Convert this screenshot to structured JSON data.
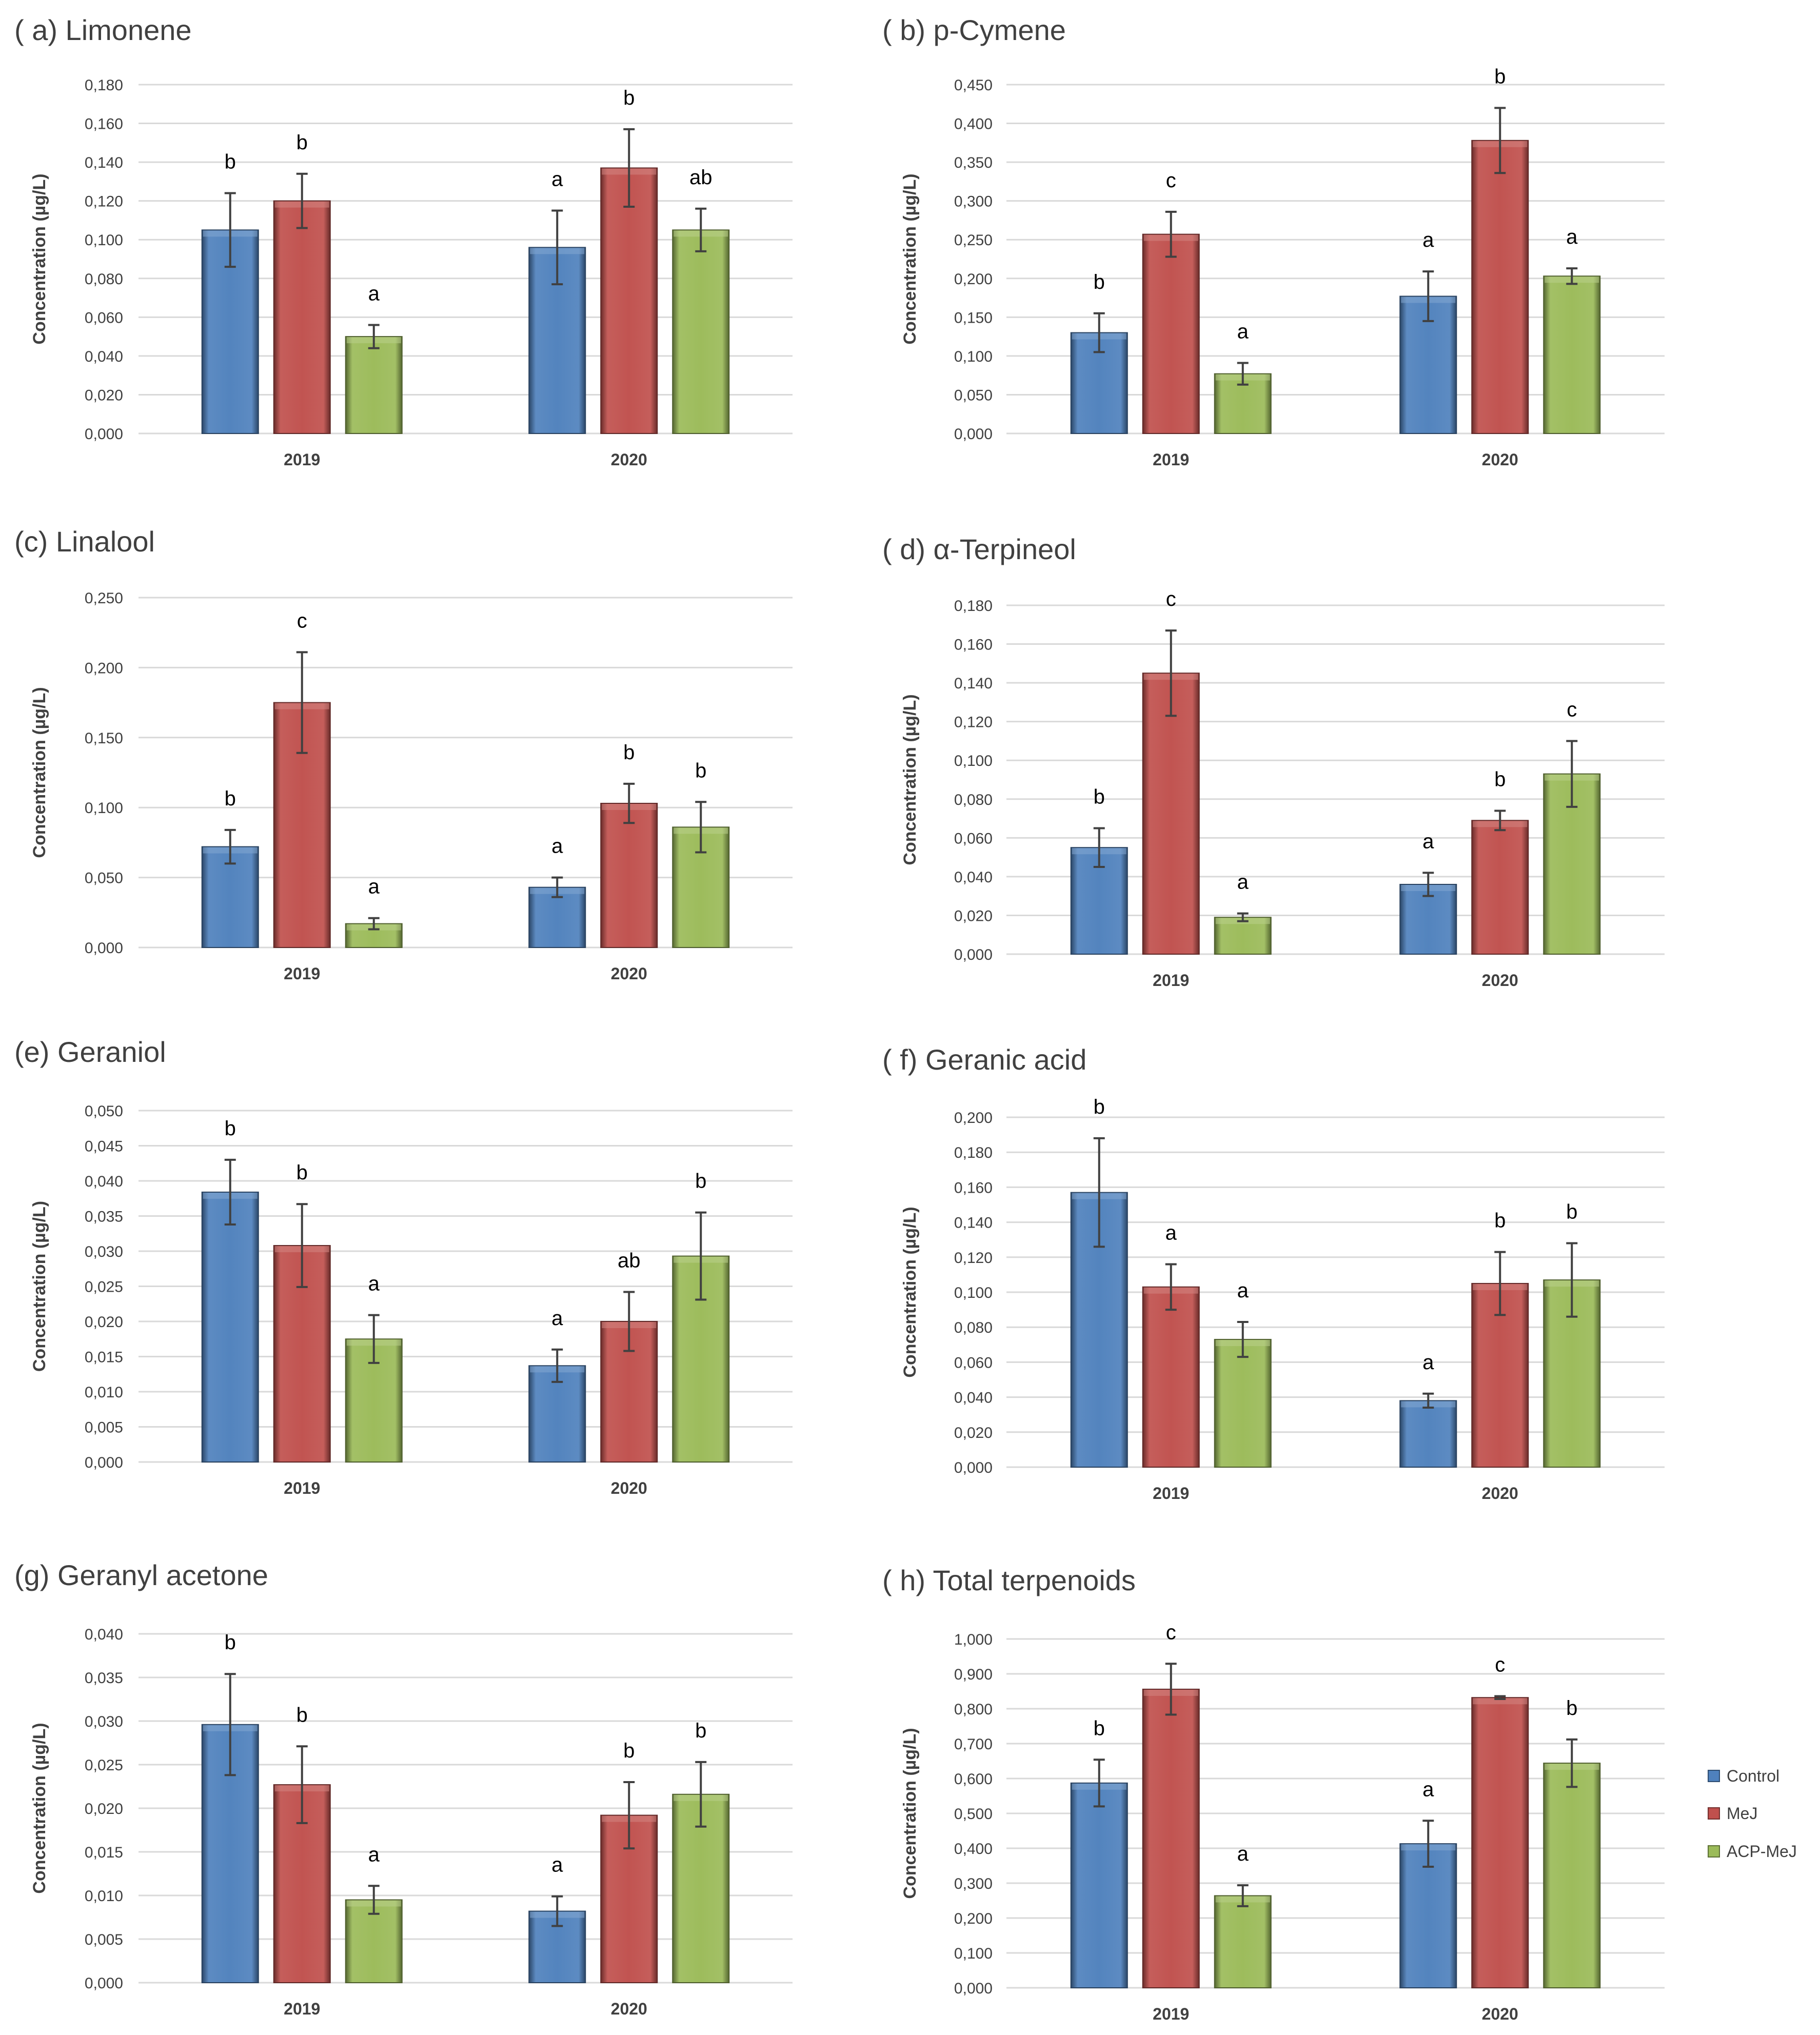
{
  "legend": [
    {
      "name": "Control",
      "color": "#4f81bd"
    },
    {
      "name": "MeJ",
      "color": "#c0504d"
    },
    {
      "name": "ACP-MeJ",
      "color": "#9bbb59"
    }
  ],
  "chart_data": [
    {
      "type": "bar",
      "title": "( a) Limonene",
      "ylabel": "Concentration (µg/L)",
      "categories": [
        "2019",
        "2020"
      ],
      "ylim": [
        0,
        0.18
      ],
      "yticks": [
        "0,000",
        "0,020",
        "0,040",
        "0,060",
        "0,080",
        "0,100",
        "0,120",
        "0,140",
        "0,160",
        "0,180"
      ],
      "series": [
        {
          "name": "Control",
          "values": [
            0.105,
            0.096
          ],
          "errors": [
            0.019,
            0.019
          ],
          "letters": [
            "b",
            "a"
          ]
        },
        {
          "name": "MeJ",
          "values": [
            0.12,
            0.137
          ],
          "errors": [
            0.014,
            0.02
          ],
          "letters": [
            "b",
            "b"
          ]
        },
        {
          "name": "ACP-MeJ",
          "values": [
            0.05,
            0.105
          ],
          "errors": [
            0.006,
            0.011
          ],
          "letters": [
            "a",
            "ab"
          ]
        }
      ]
    },
    {
      "type": "bar",
      "title": "( b) p-Cymene",
      "ylabel": "Concentration (µg/L)",
      "categories": [
        "2019",
        "2020"
      ],
      "ylim": [
        0,
        0.45
      ],
      "yticks": [
        "0,000",
        "0,050",
        "0,100",
        "0,150",
        "0,200",
        "0,250",
        "0,300",
        "0,350",
        "0,400",
        "0,450"
      ],
      "series": [
        {
          "name": "Control",
          "values": [
            0.13,
            0.177
          ],
          "errors": [
            0.025,
            0.032
          ],
          "letters": [
            "b",
            "a"
          ]
        },
        {
          "name": "MeJ",
          "values": [
            0.257,
            0.378
          ],
          "errors": [
            0.029,
            0.042
          ],
          "letters": [
            "c",
            "b"
          ]
        },
        {
          "name": "ACP-MeJ",
          "values": [
            0.077,
            0.203
          ],
          "errors": [
            0.014,
            0.01
          ],
          "letters": [
            "a",
            "a"
          ]
        }
      ]
    },
    {
      "type": "bar",
      "title": "(c) Linalool",
      "ylabel": "Concentration (µg/L)",
      "categories": [
        "2019",
        "2020"
      ],
      "ylim": [
        0,
        0.25
      ],
      "yticks": [
        "0,000",
        "0,050",
        "0,100",
        "0,150",
        "0,200",
        "0,250"
      ],
      "series": [
        {
          "name": "Control",
          "values": [
            0.072,
            0.043
          ],
          "errors": [
            0.012,
            0.007
          ],
          "letters": [
            "b",
            "a"
          ]
        },
        {
          "name": "MeJ",
          "values": [
            0.175,
            0.103
          ],
          "errors": [
            0.036,
            0.014
          ],
          "letters": [
            "c",
            "b"
          ]
        },
        {
          "name": "ACP-MeJ",
          "values": [
            0.017,
            0.086
          ],
          "errors": [
            0.004,
            0.018
          ],
          "letters": [
            "a",
            "b"
          ]
        }
      ]
    },
    {
      "type": "bar",
      "title": "( d) α-Terpineol",
      "ylabel": "Concentration (µg/L)",
      "categories": [
        "2019",
        "2020"
      ],
      "ylim": [
        0,
        0.18
      ],
      "yticks": [
        "0,000",
        "0,020",
        "0,040",
        "0,060",
        "0,080",
        "0,100",
        "0,120",
        "0,140",
        "0,160",
        "0,180"
      ],
      "series": [
        {
          "name": "Control",
          "values": [
            0.055,
            0.036
          ],
          "errors": [
            0.01,
            0.006
          ],
          "letters": [
            "b",
            "a"
          ]
        },
        {
          "name": "MeJ",
          "values": [
            0.145,
            0.069
          ],
          "errors": [
            0.022,
            0.005
          ],
          "letters": [
            "c",
            "b"
          ]
        },
        {
          "name": "ACP-MeJ",
          "values": [
            0.019,
            0.093
          ],
          "errors": [
            0.002,
            0.017
          ],
          "letters": [
            "a",
            "c"
          ]
        }
      ]
    },
    {
      "type": "bar",
      "title": "(e) Geraniol",
      "ylabel": "Concentration (µg/L)",
      "categories": [
        "2019",
        "2020"
      ],
      "ylim": [
        0,
        0.05
      ],
      "yticks": [
        "0,000",
        "0,005",
        "0,010",
        "0,015",
        "0,020",
        "0,025",
        "0,030",
        "0,035",
        "0,040",
        "0,045",
        "0,050"
      ],
      "series": [
        {
          "name": "Control",
          "values": [
            0.0384,
            0.0137
          ],
          "errors": [
            0.0046,
            0.0023
          ],
          "letters": [
            "b",
            "a"
          ]
        },
        {
          "name": "MeJ",
          "values": [
            0.0308,
            0.02
          ],
          "errors": [
            0.0059,
            0.0042
          ],
          "letters": [
            "b",
            "ab"
          ]
        },
        {
          "name": "ACP-MeJ",
          "values": [
            0.0175,
            0.0293
          ],
          "errors": [
            0.0034,
            0.0062
          ],
          "letters": [
            "a",
            "b"
          ]
        }
      ]
    },
    {
      "type": "bar",
      "title": "( f) Geranic acid",
      "ylabel": "Concentration (µg/L)",
      "categories": [
        "2019",
        "2020"
      ],
      "ylim": [
        0,
        0.2
      ],
      "yticks": [
        "0,000",
        "0,020",
        "0,040",
        "0,060",
        "0,080",
        "0,100",
        "0,120",
        "0,140",
        "0,160",
        "0,180",
        "0,200"
      ],
      "series": [
        {
          "name": "Control",
          "values": [
            0.157,
            0.038
          ],
          "errors": [
            0.031,
            0.004
          ],
          "letters": [
            "b",
            "a"
          ]
        },
        {
          "name": "MeJ",
          "values": [
            0.103,
            0.105
          ],
          "errors": [
            0.013,
            0.018
          ],
          "letters": [
            "a",
            "b"
          ]
        },
        {
          "name": "ACP-MeJ",
          "values": [
            0.073,
            0.107
          ],
          "errors": [
            0.01,
            0.021
          ],
          "letters": [
            "a",
            "b"
          ]
        }
      ]
    },
    {
      "type": "bar",
      "title": "(g) Geranyl acetone",
      "ylabel": "Concentration (µg/L)",
      "categories": [
        "2019",
        "2020"
      ],
      "ylim": [
        0,
        0.04
      ],
      "yticks": [
        "0,000",
        "0,005",
        "0,010",
        "0,015",
        "0,020",
        "0,025",
        "0,030",
        "0,035",
        "0,040"
      ],
      "series": [
        {
          "name": "Control",
          "values": [
            0.0296,
            0.0082
          ],
          "errors": [
            0.0058,
            0.0017
          ],
          "letters": [
            "b",
            "a"
          ]
        },
        {
          "name": "MeJ",
          "values": [
            0.0227,
            0.0192
          ],
          "errors": [
            0.0044,
            0.0038
          ],
          "letters": [
            "b",
            "b"
          ]
        },
        {
          "name": "ACP-MeJ",
          "values": [
            0.0095,
            0.0216
          ],
          "errors": [
            0.0016,
            0.0037
          ],
          "letters": [
            "a",
            "b"
          ]
        }
      ]
    },
    {
      "type": "bar",
      "title": "( h) Total terpenoids",
      "ylabel": "Concentration (µg/L)",
      "categories": [
        "2019",
        "2020"
      ],
      "ylim": [
        0,
        1.0
      ],
      "yticks": [
        "0,000",
        "0,100",
        "0,200",
        "0,300",
        "0,400",
        "0,500",
        "0,600",
        "0,700",
        "0,800",
        "0,900",
        "1,000"
      ],
      "series": [
        {
          "name": "Control",
          "values": [
            0.587,
            0.413
          ],
          "errors": [
            0.067,
            0.066
          ],
          "letters": [
            "b",
            "a"
          ]
        },
        {
          "name": "MeJ",
          "values": [
            0.856,
            0.832
          ],
          "errors": [
            0.073,
            0.004
          ],
          "letters": [
            "c",
            "c"
          ]
        },
        {
          "name": "ACP-MeJ",
          "values": [
            0.264,
            0.644
          ],
          "errors": [
            0.03,
            0.068
          ],
          "letters": [
            "a",
            "b"
          ]
        }
      ]
    }
  ]
}
